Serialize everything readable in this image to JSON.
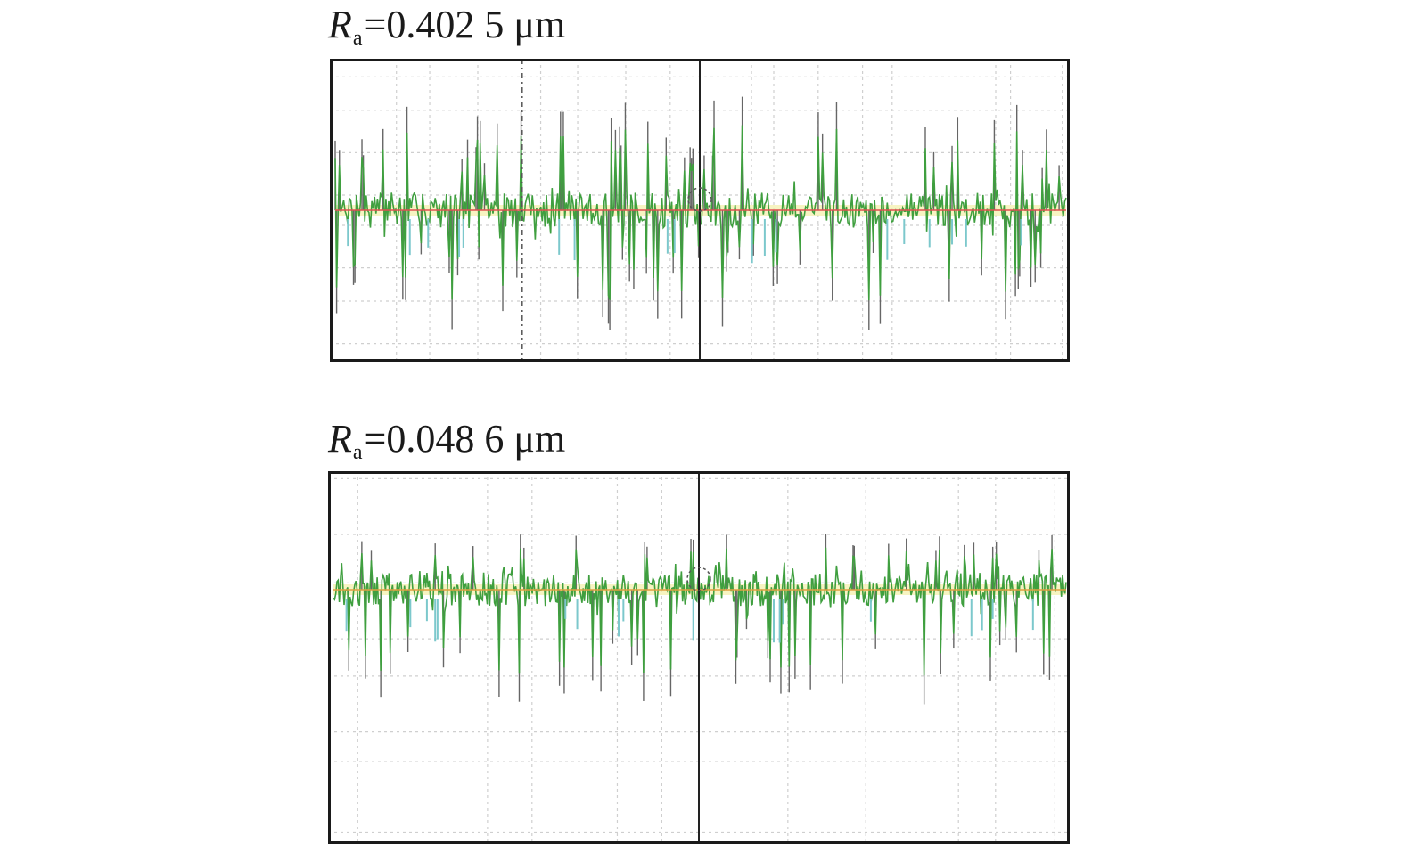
{
  "chart_data": [
    {
      "type": "line",
      "caption": {
        "symbol": "R",
        "subscript": "a",
        "equals": "=",
        "value": "0.402 5",
        "unit": "μm"
      },
      "grid": true,
      "legend": "none",
      "center_cursor": true,
      "left_dashed_cursor": true,
      "profile": {
        "samples": 520,
        "baseline": 0.0,
        "spike_up_max": 0.85,
        "spike_down_max": -0.9,
        "seed": 7
      },
      "colors": {
        "trace": "#3f9f3f",
        "spike": "#666666",
        "fill": "#f3f0a8",
        "accent": "#7cc8cc",
        "mean_line": "#e05050"
      }
    },
    {
      "type": "line",
      "caption": {
        "symbol": "R",
        "subscript": "a",
        "equals": "=",
        "value": "0.048 6",
        "unit": "μm"
      },
      "grid": true,
      "legend": "none",
      "center_cursor": true,
      "left_dashed_cursor": false,
      "profile": {
        "samples": 620,
        "baseline": 0.0,
        "spike_up_max": 0.45,
        "spike_down_max": -0.95,
        "seed": 21
      },
      "colors": {
        "trace": "#3f9f3f",
        "spike": "#666666",
        "fill": "#f3f0a8",
        "accent": "#7cc8cc",
        "mean_line": "#e0a040"
      }
    }
  ]
}
